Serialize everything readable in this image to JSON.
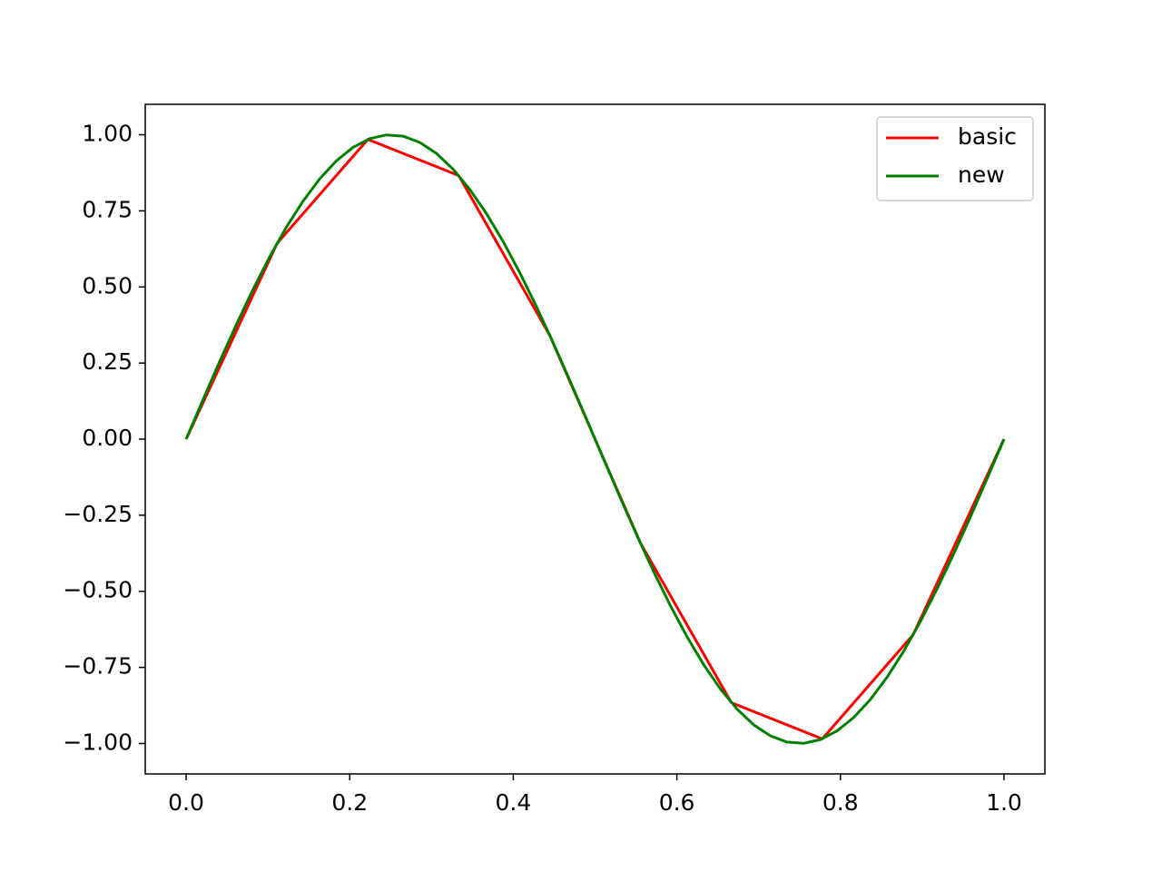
{
  "chart_data": {
    "type": "line",
    "xlim": [
      -0.05,
      1.05
    ],
    "ylim": [
      -1.1,
      1.1
    ],
    "xticks": [
      {
        "value": 0,
        "label": "0.0"
      },
      0.2,
      0.4,
      0.6,
      0.8,
      {
        "value": 1,
        "label": "1.0"
      }
    ],
    "yticks": [
      {
        "value": -1,
        "label": "−1.00"
      },
      {
        "value": -0.75,
        "label": "−0.75"
      },
      {
        "value": -0.5,
        "label": "−0.50"
      },
      {
        "value": -0.25,
        "label": "−0.25"
      },
      {
        "value": 0,
        "label": "0.00"
      },
      {
        "value": 0.25,
        "label": "0.25"
      },
      {
        "value": 0.5,
        "label": "0.50"
      },
      {
        "value": 0.75,
        "label": "0.75"
      },
      {
        "value": 1,
        "label": "1.00"
      }
    ],
    "grid": false,
    "legend": "upper right",
    "series": [
      {
        "name": "basic",
        "color": "#ff0000",
        "x": [
          0,
          0.1111,
          0.2222,
          0.3333,
          0.4444,
          0.5556,
          0.6667,
          0.7778,
          0.8889,
          1
        ],
        "values": [
          0,
          0.6428,
          0.9848,
          0.866,
          0.342,
          -0.342,
          -0.866,
          -0.9848,
          -0.6428,
          0
        ]
      },
      {
        "name": "new",
        "color": "#008000",
        "x": [
          0,
          0.0204,
          0.0408,
          0.0612,
          0.0816,
          0.102,
          0.1224,
          0.1429,
          0.1633,
          0.1837,
          0.2041,
          0.2245,
          0.2449,
          0.2653,
          0.2857,
          0.3061,
          0.3265,
          0.3469,
          0.3673,
          0.3878,
          0.4082,
          0.4286,
          0.449,
          0.4694,
          0.4898,
          0.5102,
          0.5306,
          0.551,
          0.5714,
          0.5918,
          0.6122,
          0.6327,
          0.6531,
          0.6735,
          0.6939,
          0.7143,
          0.7347,
          0.7551,
          0.7755,
          0.7959,
          0.8163,
          0.8367,
          0.8571,
          0.8776,
          0.898,
          0.9184,
          0.9388,
          0.9592,
          0.9796,
          1
        ],
        "values": [
          0,
          0.1279,
          0.2537,
          0.3752,
          0.4907,
          0.5981,
          0.6959,
          0.7818,
          0.8551,
          0.9144,
          0.9587,
          0.9872,
          0.9995,
          0.9954,
          0.9749,
          0.9385,
          0.8866,
          0.8203,
          0.7406,
          0.6481,
          0.5455,
          0.4339,
          0.3151,
          0.1912,
          0.0641,
          -0.0641,
          -0.1912,
          -0.3151,
          -0.4339,
          -0.5455,
          -0.6481,
          -0.7406,
          -0.8203,
          -0.8866,
          -0.9385,
          -0.9749,
          -0.9954,
          -0.9995,
          -0.9872,
          -0.9587,
          -0.9144,
          -0.8551,
          -0.7818,
          -0.6959,
          -0.5981,
          -0.4907,
          -0.3752,
          -0.2537,
          -0.1279,
          0
        ]
      }
    ]
  }
}
